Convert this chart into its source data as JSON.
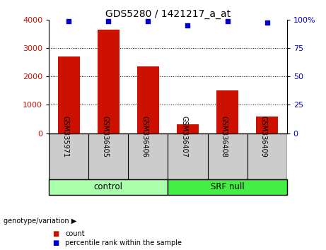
{
  "title": "GDS5280 / 1421217_a_at",
  "samples": [
    "GSM335971",
    "GSM336405",
    "GSM336406",
    "GSM336407",
    "GSM336408",
    "GSM336409"
  ],
  "counts": [
    2720,
    3650,
    2370,
    310,
    1520,
    580
  ],
  "percentiles": [
    99,
    99,
    99,
    95,
    99,
    98
  ],
  "ylim_left": [
    0,
    4000
  ],
  "ylim_right": [
    0,
    100
  ],
  "yticks_left": [
    0,
    1000,
    2000,
    3000,
    4000
  ],
  "yticks_right": [
    0,
    25,
    50,
    75,
    100
  ],
  "ytick_right_labels": [
    "0",
    "25",
    "50",
    "75",
    "100%"
  ],
  "bar_color": "#cc1100",
  "dot_color": "#0000cc",
  "groups": [
    {
      "label": "control",
      "indices": [
        0,
        1,
        2
      ],
      "color": "#aaffaa"
    },
    {
      "label": "SRF null",
      "indices": [
        3,
        4,
        5
      ],
      "color": "#44ee44"
    }
  ],
  "group_label": "genotype/variation",
  "legend_count_label": "count",
  "legend_percentile_label": "percentile rank within the sample",
  "tick_area_color": "#cccccc"
}
